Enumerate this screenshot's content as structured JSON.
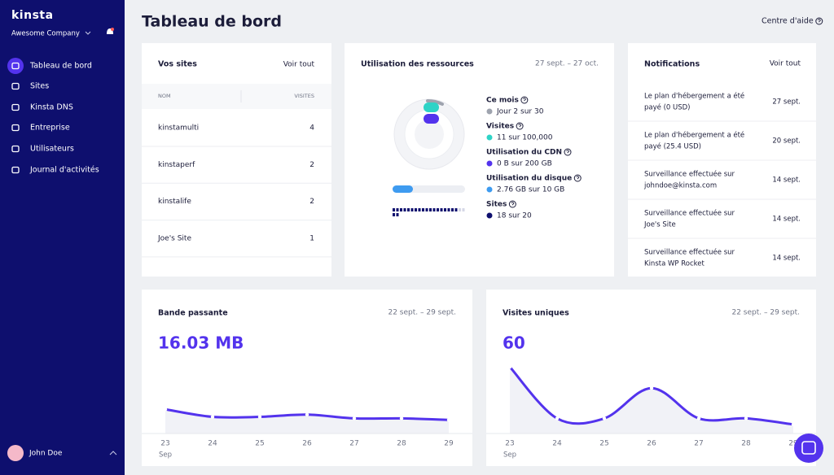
{
  "sidebar": {
    "brand": "kinsta",
    "company": "Awesome Company",
    "nav": [
      "Tableau de bord",
      "Sites",
      "Kinsta DNS",
      "Entreprise",
      "Utilisateurs",
      "Journal d'activités"
    ],
    "user": "John Doe"
  },
  "header": {
    "title": "Tableau de bord",
    "help": "Centre d'aide"
  },
  "sites_card": {
    "title": "Vos sites",
    "link": "Voir tout",
    "columns": [
      "NOM",
      "VISITES"
    ],
    "rows": [
      [
        "kinstamulti",
        "4"
      ],
      [
        "kinstaperf",
        "2"
      ],
      [
        "kinstalife",
        "2"
      ],
      [
        "Joe's Site",
        "1"
      ]
    ]
  },
  "resources_card": {
    "title": "Utilisation des ressources",
    "range": "27 sept. – 27 oct.",
    "items": [
      {
        "label": "Ce mois",
        "value": "Jour 2 sur 30",
        "color": "#9ea3ae"
      },
      {
        "label": "Visites",
        "value": "11 sur 100,000",
        "color": "#2ed3c6"
      },
      {
        "label": "Utilisation du CDN",
        "value": "0 B sur 200 GB",
        "color": "#5333ed"
      },
      {
        "label": "Utilisation du disque",
        "value": "2.76 GB sur 10 GB",
        "color": "#3e9bf0"
      },
      {
        "label": "Sites",
        "value": "18 sur 20",
        "color": "#0e0f6e"
      }
    ]
  },
  "notifications_card": {
    "title": "Notifications",
    "link": "Voir tout",
    "rows": [
      {
        "text": [
          "Le plan d'hébergement a été",
          "payé (0 USD)"
        ],
        "date": "27 sept."
      },
      {
        "text": [
          "Le plan d'hébergement a été",
          "payé (25.4 USD)"
        ],
        "date": "20 sept."
      },
      {
        "text": [
          "Surveillance effectuée sur",
          "johndoe@kinsta.com"
        ],
        "date": "14 sept."
      },
      {
        "text": [
          "Surveillance effectuée sur",
          "Joe's Site"
        ],
        "date": "14 sept."
      },
      {
        "text": [
          "Surveillance effectuée sur",
          "Kinsta WP Rocket"
        ],
        "date": "14 sept."
      }
    ]
  },
  "chart_data": [
    {
      "type": "line",
      "title": "Bande passante",
      "subtitle": "22 sept. – 29 sept.",
      "total": "16.03 MB",
      "categories": [
        "23",
        "24",
        "25",
        "26",
        "27",
        "28",
        "29"
      ],
      "month": "Sep",
      "values": [
        3.2,
        2.2,
        2.2,
        2.5,
        2.0,
        2.0,
        1.8
      ],
      "ylim": [
        0,
        10
      ],
      "color": "#5333ed"
    },
    {
      "type": "line",
      "title": "Visites uniques",
      "subtitle": "22 sept. – 29 sept.",
      "total": "60",
      "categories": [
        "23",
        "24",
        "25",
        "26",
        "27",
        "28",
        "29"
      ],
      "month": "Sep",
      "values": [
        22,
        5,
        5,
        15,
        5,
        5,
        3
      ],
      "ylim": [
        0,
        25
      ],
      "color": "#5333ed"
    }
  ]
}
